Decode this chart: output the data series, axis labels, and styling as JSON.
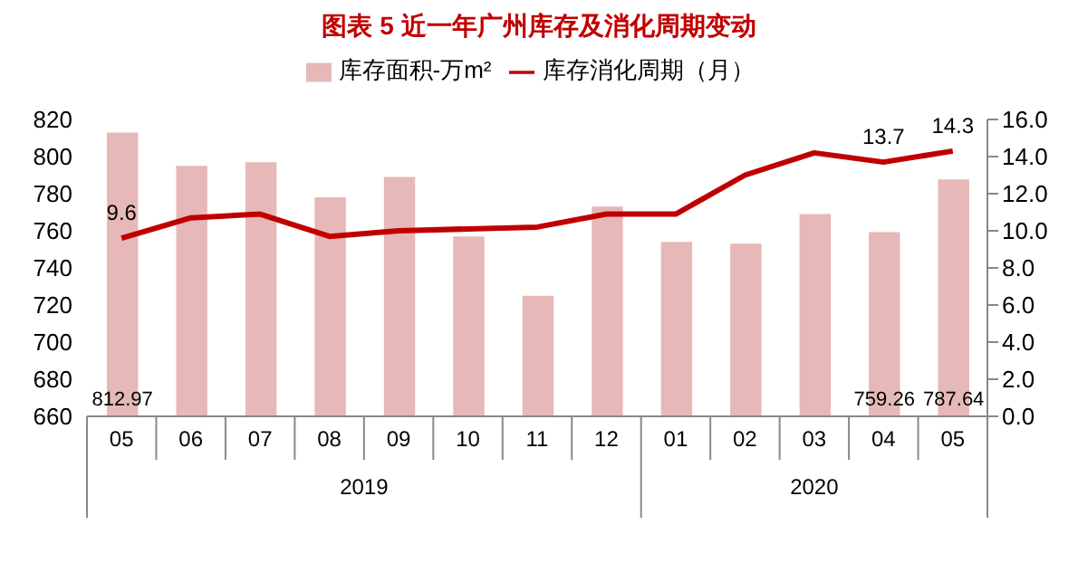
{
  "chart_data": {
    "type": "bar",
    "title": "图表 5 近一年广州库存及消化周期变动",
    "categories": [
      "05",
      "06",
      "07",
      "08",
      "09",
      "10",
      "11",
      "12",
      "01",
      "02",
      "03",
      "04",
      "05"
    ],
    "annotations": [
      "2019",
      "2020"
    ],
    "series": [
      {
        "name": "库存面积-万m²",
        "color": "#e6b8b7",
        "values": [
          812.97,
          795,
          797,
          778,
          789,
          757,
          725,
          773,
          754,
          753,
          769,
          759.26,
          787.64
        ],
        "value_labels": [
          "812.97",
          null,
          null,
          null,
          null,
          null,
          null,
          null,
          null,
          null,
          null,
          "759.26",
          "787.64"
        ]
      },
      {
        "name": "库存消化周期（月）",
        "type": "line",
        "axis": "y2",
        "color": "#c00000",
        "values": [
          9.6,
          10.7,
          10.9,
          9.7,
          10.0,
          10.1,
          10.2,
          10.9,
          10.9,
          13.0,
          14.2,
          13.7,
          14.3
        ],
        "value_labels": [
          "9.6",
          null,
          null,
          null,
          null,
          null,
          null,
          null,
          null,
          null,
          null,
          "13.7",
          "14.3"
        ]
      }
    ],
    "ylim": [
      660,
      820
    ],
    "yticks": [
      660,
      680,
      700,
      720,
      740,
      760,
      780,
      800,
      820
    ],
    "y2lim": [
      0,
      16
    ],
    "y2ticks": [
      {
        "value": 0,
        "label": "0.0"
      },
      {
        "value": 2,
        "label": "2.0"
      },
      {
        "value": 4,
        "label": "4.0"
      },
      {
        "value": 6,
        "label": "6.0"
      },
      {
        "value": 8,
        "label": "8.0"
      },
      {
        "value": 10,
        "label": "10.0"
      },
      {
        "value": 12,
        "label": "12.0"
      },
      {
        "value": 14,
        "label": "14.0"
      },
      {
        "value": 16,
        "label": "16.0"
      }
    ],
    "grid": false,
    "legend": "top",
    "marker": "none"
  }
}
